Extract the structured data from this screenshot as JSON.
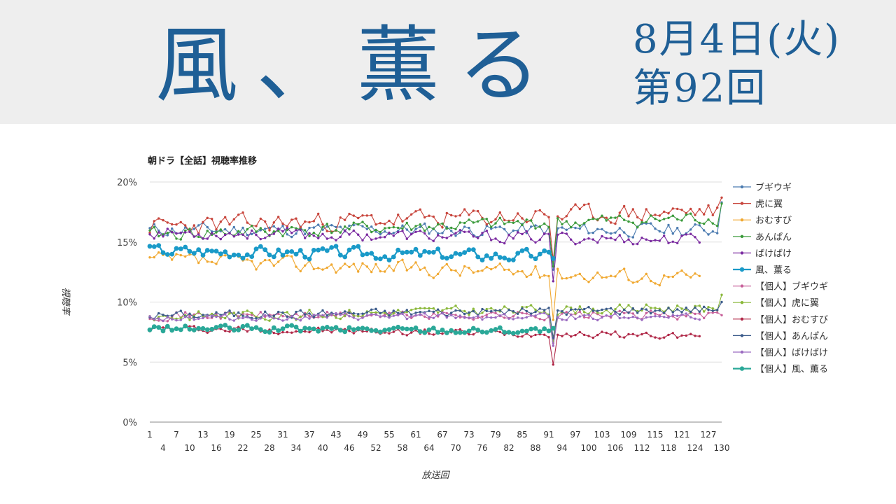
{
  "header": {
    "title": "風、薫る",
    "date": "8月4日(火)",
    "episode": "第92回"
  },
  "chart_data": {
    "type": "line",
    "title": "朝ドラ【全話】視聴率推移",
    "xlabel": "放送回",
    "ylabel": "視聴率",
    "ylim": [
      0,
      20
    ],
    "yticks": [
      "0%",
      "5%",
      "10%",
      "15%",
      "20%"
    ],
    "xlim": [
      1,
      130
    ],
    "xticks_top": [
      1,
      7,
      13,
      19,
      25,
      31,
      37,
      43,
      49,
      55,
      61,
      67,
      73,
      79,
      85,
      91,
      97,
      103,
      109,
      115,
      121,
      127
    ],
    "xticks_bottom": [
      4,
      10,
      16,
      22,
      28,
      34,
      40,
      46,
      52,
      58,
      64,
      70,
      76,
      82,
      88,
      94,
      100,
      106,
      112,
      118,
      124,
      130
    ],
    "grid": true,
    "legend_position": "right",
    "series": [
      {
        "name": "ブギウギ",
        "color": "#4b7bb0",
        "base": 16.0,
        "slope": 0.0,
        "amp": 0.8,
        "seed": 11,
        "start": 1,
        "end": 130,
        "end_value": 18.3
      },
      {
        "name": "虎に翼",
        "color": "#c8453c",
        "base": 16.3,
        "slope": 0.01,
        "amp": 1.1,
        "seed": 23,
        "start": 1,
        "end": 130,
        "end_value": 18.7
      },
      {
        "name": "おむすび",
        "color": "#f0a830",
        "base": 13.5,
        "slope": -0.012,
        "amp": 0.9,
        "seed": 37,
        "start": 1,
        "end": 125
      },
      {
        "name": "あんぱん",
        "color": "#3a9a3a",
        "base": 15.6,
        "slope": 0.011,
        "amp": 0.8,
        "seed": 41,
        "start": 1,
        "end": 130,
        "end_value": 18.2
      },
      {
        "name": "ばけばけ",
        "color": "#7a2aa0",
        "base": 15.8,
        "slope": -0.005,
        "amp": 0.7,
        "seed": 53,
        "start": 1,
        "end": 125
      },
      {
        "name": "風、薫る",
        "color": "#1a9ac8",
        "base": 14.3,
        "slope": -0.005,
        "amp": 0.7,
        "seed": 67,
        "start": 1,
        "end": 92,
        "highlight": true
      },
      {
        "name": "【個人】ブギウギ",
        "color": "#c8609a",
        "base": 8.9,
        "slope": 0.0,
        "amp": 0.5,
        "seed": 71,
        "start": 1,
        "end": 130
      },
      {
        "name": "【個人】虎に翼",
        "color": "#8ab83a",
        "base": 8.8,
        "slope": 0.006,
        "amp": 0.6,
        "seed": 83,
        "start": 1,
        "end": 130,
        "end_value": 10.6
      },
      {
        "name": "【個人】おむすび",
        "color": "#b02848",
        "base": 7.8,
        "slope": -0.005,
        "amp": 0.4,
        "seed": 97,
        "start": 1,
        "end": 125
      },
      {
        "name": "【個人】あんぱん",
        "color": "#3a5a8a",
        "base": 8.9,
        "slope": 0.004,
        "amp": 0.5,
        "seed": 101,
        "start": 1,
        "end": 130,
        "end_value": 10.0
      },
      {
        "name": "【個人】ばけばけ",
        "color": "#9a6ac0",
        "base": 8.7,
        "slope": 0.001,
        "amp": 0.4,
        "seed": 113,
        "start": 1,
        "end": 125
      },
      {
        "name": "【個人】風、薫る",
        "color": "#2aa898",
        "base": 7.8,
        "slope": -0.002,
        "amp": 0.4,
        "seed": 127,
        "start": 1,
        "end": 92,
        "highlight": true
      }
    ]
  }
}
